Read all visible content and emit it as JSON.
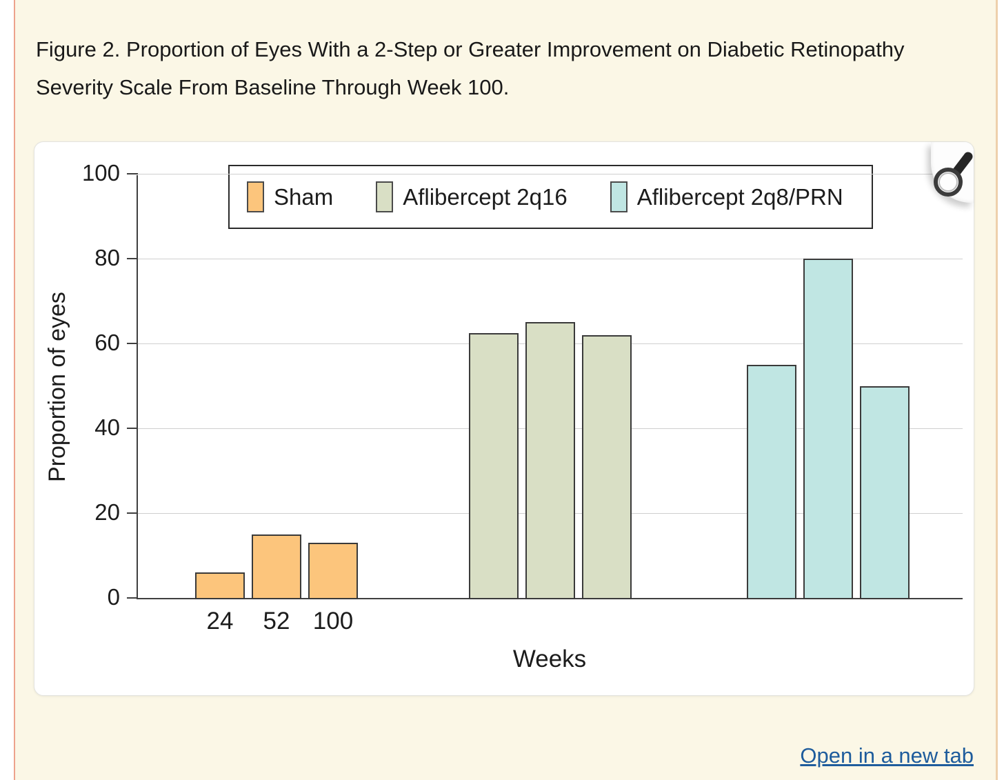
{
  "page": {
    "caption_line1": "Figure 2. Proportion of Eyes With a 2-Step or Greater Improvement on Diabetic Retinopathy",
    "caption_line2": "Severity Scale From Baseline Through Week 100.",
    "link_label": "Open in a new tab"
  },
  "colors": {
    "page_background": "#fbf7e6",
    "left_border": "#eda28c",
    "right_border": "#eed0ac",
    "link_blue": "#1e5c9c",
    "axis": "#3f3f3f",
    "gridline": "#cfcfcf"
  },
  "icons": {
    "magnifier": "magnifier-icon"
  },
  "chart_data": {
    "type": "bar",
    "title": "",
    "xlabel": "Weeks",
    "ylabel": "Proportion of eyes",
    "ylim": [
      0,
      100
    ],
    "yticks": [
      0,
      20,
      40,
      60,
      80,
      100
    ],
    "grid": true,
    "legend_position": "top-center",
    "categories": [
      "24",
      "52",
      "100"
    ],
    "series": [
      {
        "name": "Sham",
        "color": "#fcc57c",
        "values": [
          6,
          15,
          13
        ]
      },
      {
        "name": "Aflibercept 2q16",
        "color": "#d9dfc5",
        "values": [
          62.5,
          65,
          62
        ]
      },
      {
        "name": "Aflibercept 2q8/PRN",
        "color": "#c0e6e3",
        "values": [
          55,
          80,
          50
        ]
      }
    ]
  }
}
